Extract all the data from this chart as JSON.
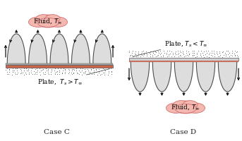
{
  "background_color": "#ffffff",
  "plate_color_hot": "#c8654a",
  "plate_color_cold": "#d0d0d0",
  "arch_fill": "#d8d8d8",
  "arch_edge": "#444444",
  "arrow_color": "#111111",
  "dot_color": "#888888",
  "cloud_color": "#f5b8b0",
  "cloud_edge_color": "#d07070",
  "case_c_label": "Case C",
  "case_d_label": "Case D",
  "fluid_label": "Fluid, $T_{\\infty}$",
  "plate_c_label": "Plate,  $T_s > T_{\\infty}$",
  "plate_d_label": "Plate, $T_s < T_{\\infty}$",
  "label_fontsize": 6.5,
  "case_label_fontsize": 7.5
}
